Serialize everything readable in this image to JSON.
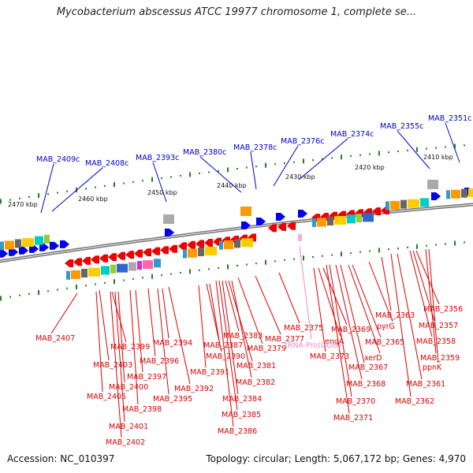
{
  "title": "Mycobacterium abscessus ATCC 19977 chromosome 1, complete se...",
  "footer": {
    "accession": "Accession: NC_010397",
    "summary": "Topology: circular; Length: 5,067,172 bp; Genes: 4,970"
  },
  "colors": {
    "upper_label": "#0000cc",
    "lower_label": "#dd0000",
    "trna_label": "#ee88cc",
    "ruler_tick": "#2a7a2a",
    "backbone": "#777777",
    "cds_forward": "#0000ee",
    "cds_reverse": "#ee0000"
  },
  "ruler_labels": [
    "2470 kbp",
    "2460 kbp",
    "2450 kbp",
    "2440 kbp",
    "2430 kbp",
    "2420 kbp",
    "2410 kbp"
  ],
  "upper_genes": [
    "MAB_2409c",
    "MAB_2408c",
    "MAB_2393c",
    "MAB_2380c",
    "MAB_2378c",
    "MAB_2376c",
    "MAB_2374c",
    "MAB_2355c",
    "MAB_2351c"
  ],
  "lower_genes": [
    "MAB_2407",
    "MAB_2399",
    "MAB_2403",
    "MAB_2396",
    "MAB_2394",
    "MAB_2397",
    "MAB_2400",
    "MAB_2405",
    "MAB_2398",
    "MAB_2401",
    "MAB_2402",
    "MAB_2395",
    "MAB_2392",
    "MAB_2391",
    "MAB_2390",
    "MAB_2387",
    "MAB_2383",
    "MAB_2381",
    "MAB_2382",
    "MAB_2384",
    "MAB_2385",
    "MAB_2386",
    "MAB_2379",
    "MAB_2377",
    "MAB_2375",
    "engA",
    "MAB_2373",
    "MAB_2369",
    "xerD",
    "MAB_2365",
    "MAB_2367",
    "MAB_2368",
    "MAB_2370",
    "MAB_2371",
    "pyrG",
    "MAB_2363",
    "MAB_2361",
    "MAB_2362",
    "MAB_2356",
    "MAB_2357",
    "MAB_2358",
    "MAB_2359",
    "ppnK"
  ],
  "trna_gene": "tRNA-Pro(GGG)"
}
